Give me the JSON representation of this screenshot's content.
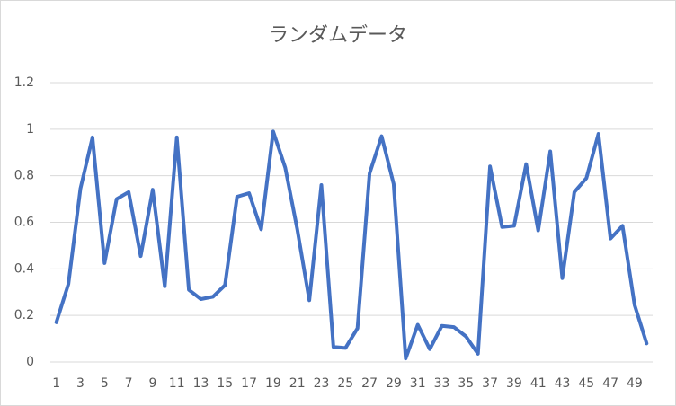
{
  "chart_data": {
    "type": "line",
    "title": "ランダムデータ",
    "categories": [
      "1",
      null,
      "3",
      null,
      "5",
      null,
      "7",
      null,
      "9",
      null,
      "11",
      null,
      "13",
      null,
      "15",
      null,
      "17",
      null,
      "19",
      null,
      "21",
      null,
      "23",
      null,
      "25",
      null,
      "27",
      null,
      "29",
      null,
      "31",
      null,
      "33",
      null,
      "35",
      null,
      "37",
      null,
      "39",
      null,
      "41",
      null,
      "43",
      null,
      "45",
      null,
      "47",
      null,
      "49",
      null
    ],
    "series": [
      {
        "color": "#4472c4",
        "values": [
          0.17,
          0.335,
          0.745,
          0.965,
          0.425,
          0.7,
          0.73,
          0.455,
          0.74,
          0.325,
          0.965,
          0.31,
          0.27,
          0.28,
          0.33,
          0.71,
          0.725,
          0.57,
          0.99,
          0.835,
          0.57,
          0.265,
          0.76,
          0.065,
          0.06,
          0.145,
          0.81,
          0.97,
          0.765,
          0.015,
          0.16,
          0.055,
          0.155,
          0.15,
          0.11,
          0.035,
          0.84,
          0.58,
          0.585,
          0.85,
          0.565,
          0.905,
          0.36,
          0.73,
          0.79,
          0.98,
          0.53,
          0.585,
          0.245,
          0.08
        ]
      }
    ],
    "ylim": [
      0,
      1.2
    ],
    "yticks": [
      0,
      0.2,
      0.4,
      0.6,
      0.8,
      1,
      1.2
    ],
    "grid": true
  }
}
